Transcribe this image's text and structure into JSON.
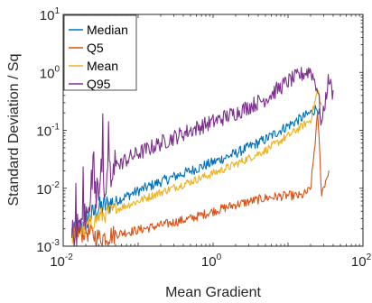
{
  "chart_data": {
    "type": "line",
    "title": "",
    "xlabel": "Mean Gradient",
    "ylabel": "Standard Deviation / Sq",
    "xscale": "log",
    "yscale": "log",
    "xlim": [
      0.01,
      100
    ],
    "ylim": [
      0.001,
      10
    ],
    "grid": false,
    "legend_position": "top-left",
    "x_ticks": [
      {
        "base": "10",
        "exp": "-2"
      },
      {
        "base": "10",
        "exp": "0"
      },
      {
        "base": "10",
        "exp": "2"
      }
    ],
    "y_ticks": [
      {
        "base": "10",
        "exp": "-3"
      },
      {
        "base": "10",
        "exp": "-2"
      },
      {
        "base": "10",
        "exp": "-1"
      },
      {
        "base": "10",
        "exp": "0"
      },
      {
        "base": "10",
        "exp": "1"
      }
    ],
    "series": [
      {
        "name": "Median",
        "color": "#0072BD",
        "x": [
          0.013,
          0.02,
          0.03,
          0.05,
          0.1,
          0.2,
          0.5,
          1,
          2,
          5,
          10,
          20,
          25,
          28
        ],
        "y": [
          0.0015,
          0.0028,
          0.0045,
          0.006,
          0.009,
          0.013,
          0.02,
          0.028,
          0.04,
          0.07,
          0.12,
          0.2,
          0.25,
          0.12
        ]
      },
      {
        "name": "Q5",
        "color": "#D95319",
        "x": [
          0.013,
          0.02,
          0.03,
          0.05,
          0.1,
          0.2,
          0.5,
          1,
          2,
          5,
          10,
          15,
          20,
          25,
          28,
          35
        ],
        "y": [
          0.0015,
          0.0018,
          0.0014,
          0.0016,
          0.0019,
          0.0023,
          0.003,
          0.004,
          0.0052,
          0.0068,
          0.0075,
          0.0073,
          0.0095,
          0.2,
          0.008,
          0.02
        ]
      },
      {
        "name": "Mean",
        "color": "#EDB120",
        "x": [
          0.013,
          0.02,
          0.03,
          0.05,
          0.1,
          0.2,
          0.5,
          1,
          2,
          5,
          10,
          20,
          25,
          28
        ],
        "y": [
          0.0015,
          0.0022,
          0.0032,
          0.0043,
          0.006,
          0.0085,
          0.013,
          0.018,
          0.026,
          0.045,
          0.08,
          0.15,
          0.5,
          0.25
        ]
      },
      {
        "name": "Q95",
        "color": "#7E2F8E",
        "x": [
          0.013,
          0.02,
          0.03,
          0.05,
          0.1,
          0.2,
          0.5,
          1,
          2,
          5,
          10,
          20,
          25,
          28,
          35,
          40
        ],
        "y": [
          0.0015,
          0.003,
          0.01,
          0.025,
          0.04,
          0.06,
          0.1,
          0.14,
          0.2,
          0.35,
          0.7,
          1.1,
          0.5,
          0.12,
          0.8,
          0.4
        ]
      }
    ]
  }
}
